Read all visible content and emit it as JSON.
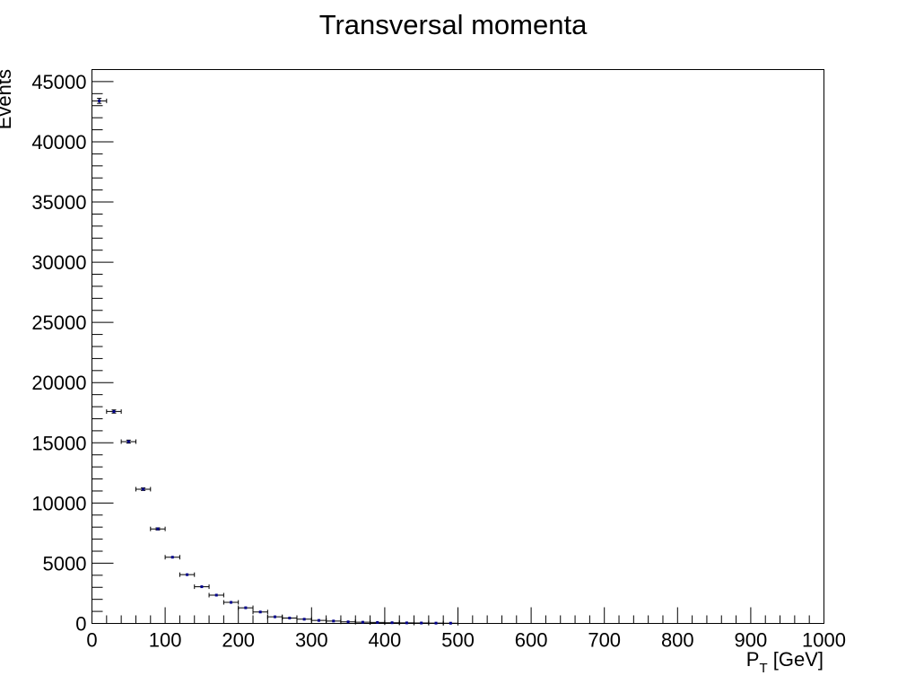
{
  "chart_data": {
    "type": "scatter",
    "title": "Transversal momenta",
    "xlabel_main": "P",
    "xlabel_sub": "T",
    "xlabel_unit": " [GeV]",
    "ylabel": "Events",
    "xlim": [
      0,
      1000
    ],
    "ylim": [
      0,
      46000
    ],
    "x_ticks": [
      0,
      100,
      200,
      300,
      400,
      500,
      600,
      700,
      800,
      900,
      1000
    ],
    "y_ticks": [
      0,
      5000,
      10000,
      15000,
      20000,
      25000,
      30000,
      35000,
      40000,
      45000
    ],
    "bin_width": 20,
    "grid": false,
    "legend": "none",
    "marker_color": "#00008b",
    "series": [
      {
        "x": [
          10,
          30,
          50,
          70,
          90,
          110,
          130,
          150,
          170,
          190,
          210,
          230,
          250,
          270,
          290,
          310,
          330,
          350,
          370,
          390,
          410,
          430,
          450,
          470,
          490
        ],
        "values": [
          43400,
          17600,
          15100,
          11150,
          7850,
          5500,
          4050,
          3050,
          2350,
          1750,
          1300,
          950,
          550,
          450,
          350,
          250,
          200,
          130,
          100,
          80,
          60,
          45,
          35,
          25,
          20
        ]
      }
    ]
  }
}
